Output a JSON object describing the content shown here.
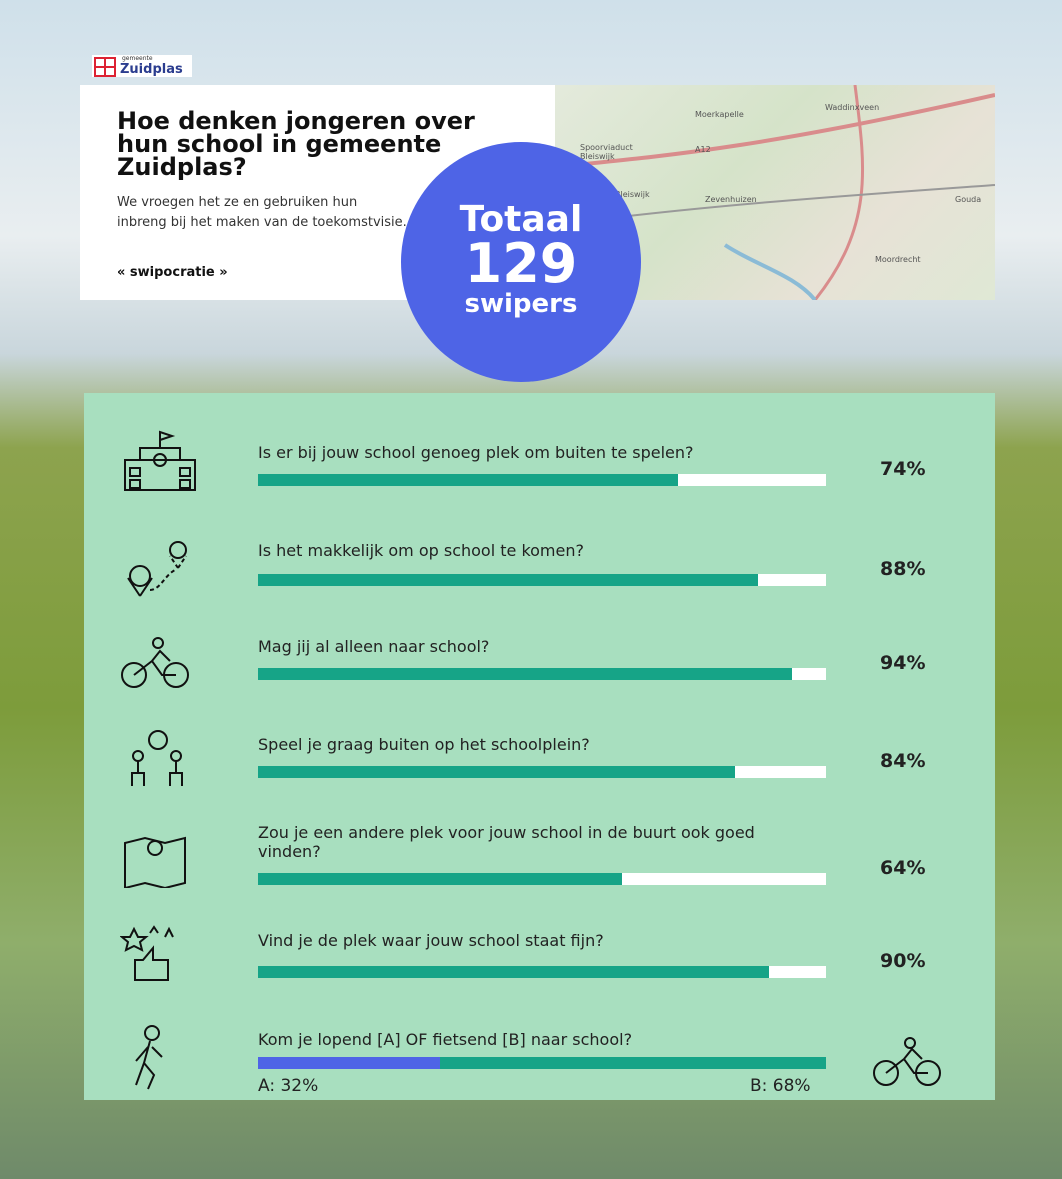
{
  "header": {
    "logo_small": "gemeente",
    "logo_name": "Zuidplas",
    "title": "Hoe denken jongeren over hun school in gemeente Zuidplas?",
    "subtitle": "We vroegen het ze en gebruiken hun inbreng bij het maken van de toekomstvisie.",
    "brand": "« swipocratie »"
  },
  "map": {
    "labels": [
      "Waddinxveen",
      "Moerkapelle",
      "Spoorviaduct Bleiswijk",
      "A12",
      "Bleiswijk",
      "Zevenhuizen",
      "Gouda",
      "Moordrecht"
    ]
  },
  "total": {
    "label": "Totaal",
    "value": 129,
    "unit": "swipers"
  },
  "scale": [
    0,
    100
  ],
  "questions": [
    {
      "question": "Is er bij jouw school genoeg plek om buiten te spelen?",
      "value": 74,
      "label": "74%"
    },
    {
      "question": "Is het makkelijk om op school te komen?",
      "value": 88,
      "label": "88%"
    },
    {
      "question": "Mag jij al alleen naar school?",
      "value": 94,
      "label": "94%"
    },
    {
      "question": "Speel je graag buiten op het schoolplein?",
      "value": 84,
      "label": "84%"
    },
    {
      "question": "Zou je een andere plek voor jouw school in de buurt ook goed vinden?",
      "value": 64,
      "label": "64%"
    },
    {
      "question": "Vind je de plek waar jouw school staat fijn?",
      "value": 90,
      "label": "90%"
    }
  ],
  "split": {
    "question": "Kom je lopend [A] OF fietsend [B] naar school?",
    "a": {
      "value": 32,
      "label": "A: 32%"
    },
    "b": {
      "value": 68,
      "label": "B: 68%"
    }
  }
}
